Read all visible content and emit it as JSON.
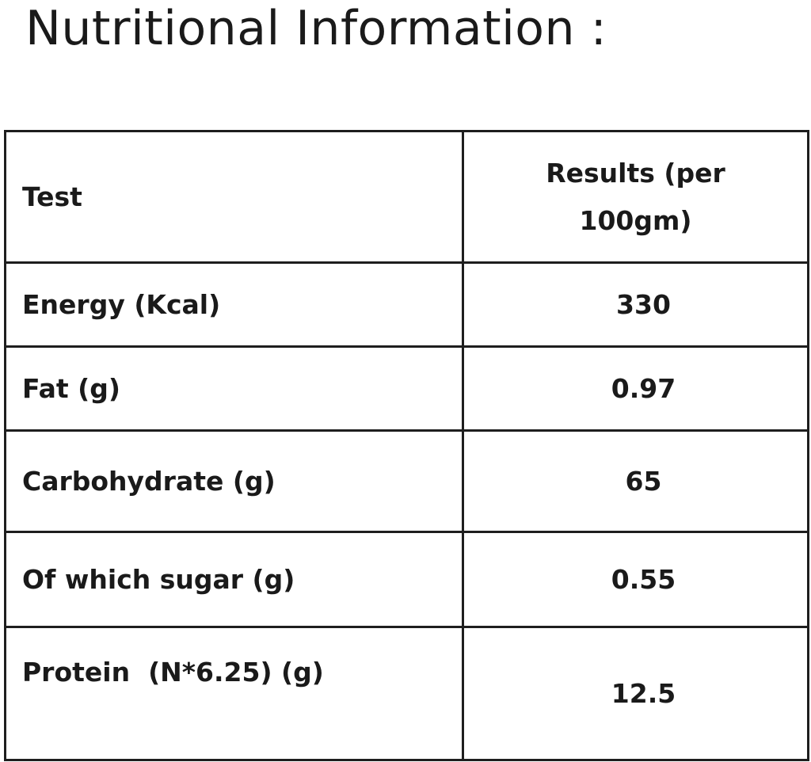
{
  "title": "Nutritional Information :",
  "table": {
    "headers": {
      "test": "Test",
      "results_line1": "Results (per",
      "results_line2": "100gm)"
    },
    "rows": [
      {
        "test": "Energy (Kcal)",
        "result": "330"
      },
      {
        "test": "Fat (g)",
        "result": "0.97"
      },
      {
        "test": "Carbohydrate (g)",
        "result": "65"
      },
      {
        "test": "Of which sugar (g)",
        "result": "0.55"
      },
      {
        "test": "Protein  (N*6.25) (g)",
        "result": "12.5"
      }
    ]
  }
}
